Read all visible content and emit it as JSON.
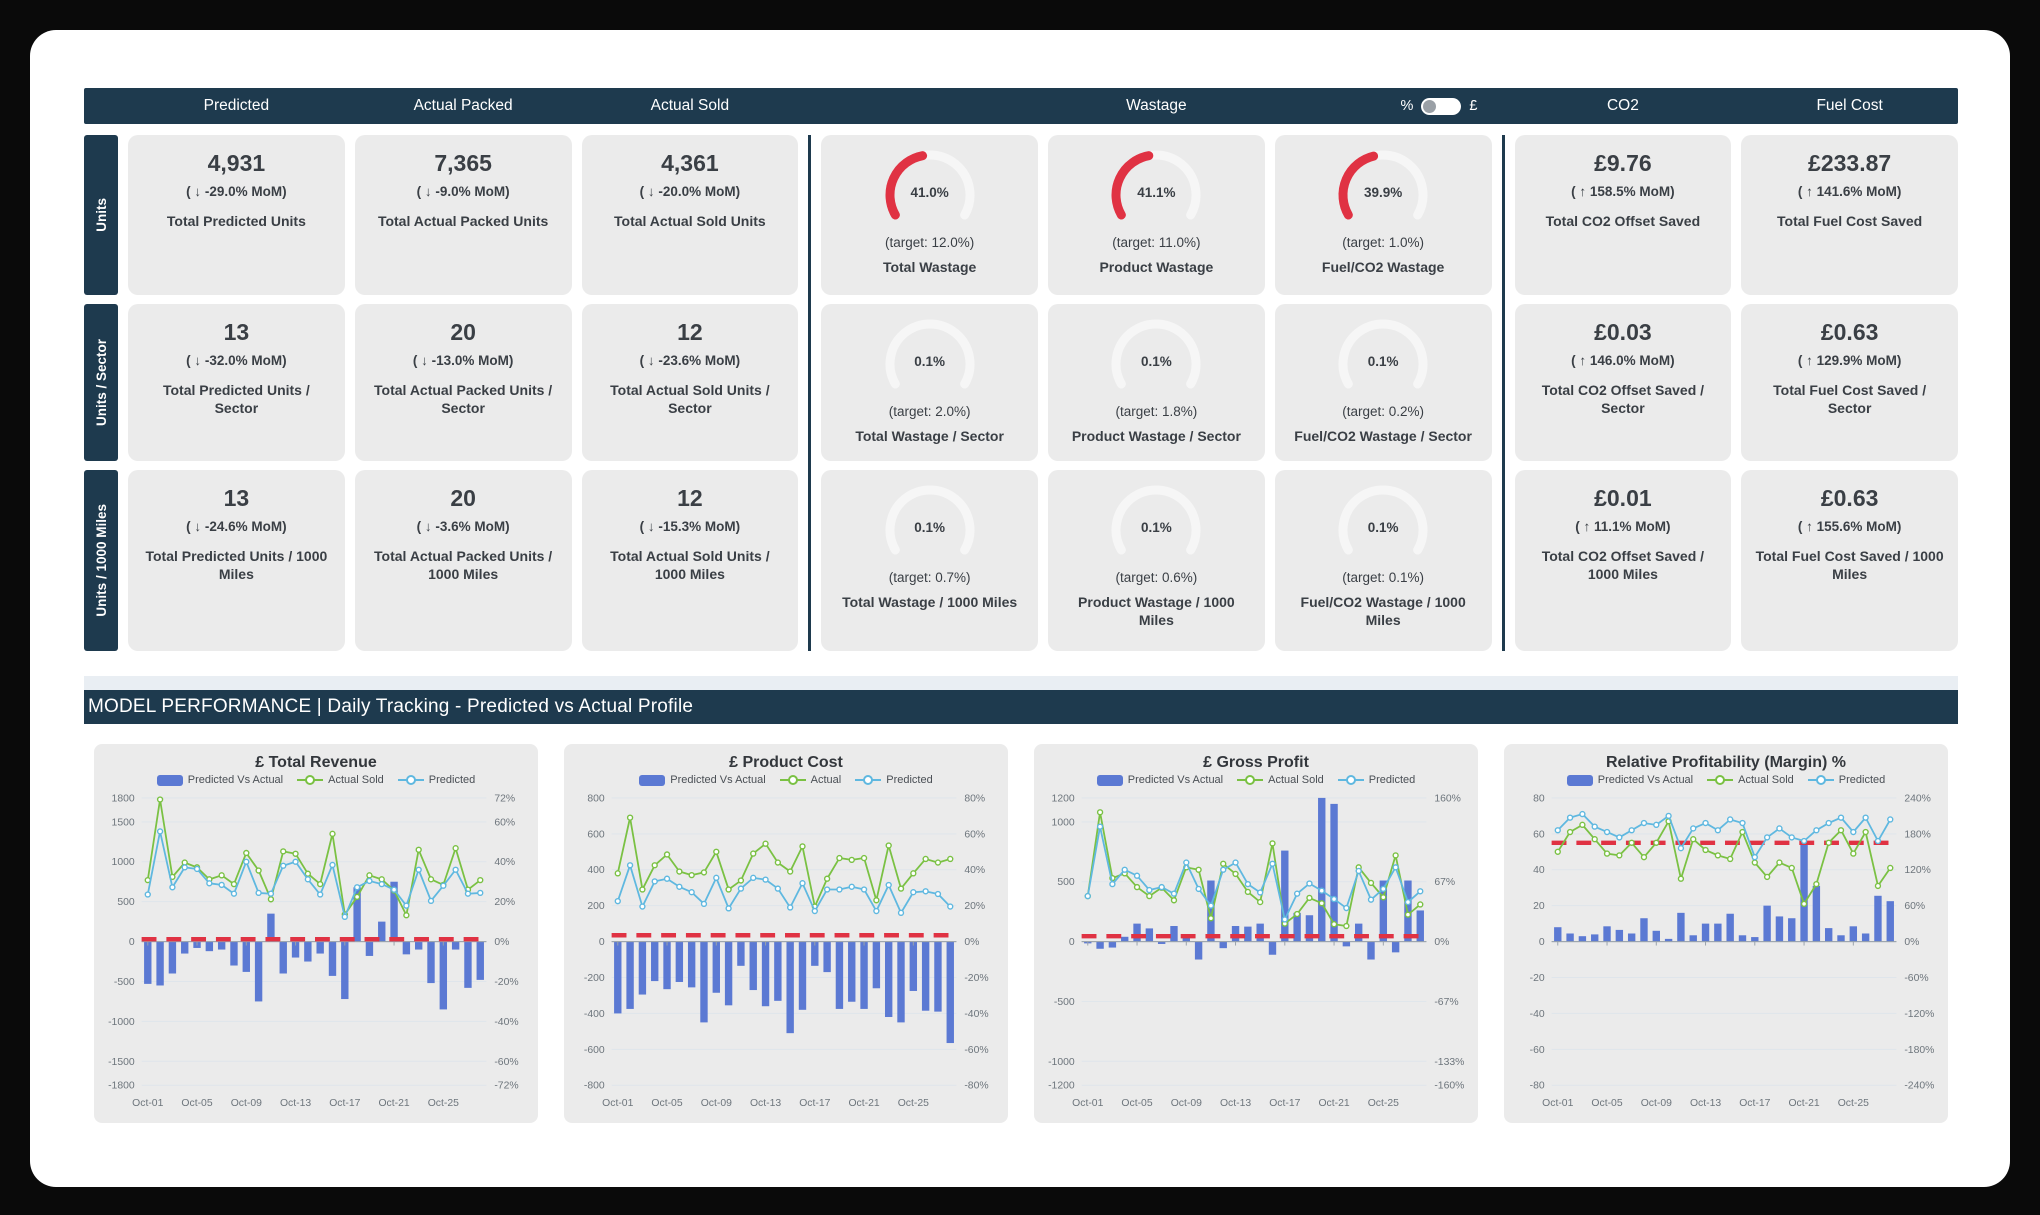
{
  "colors": {
    "navy": "#1e3a4e",
    "card_gray": "#ebebeb",
    "gauge_red": "#e03243",
    "gauge_track": "#f6f6f6",
    "bar_blue": "#5b79d3",
    "line_green": "#7ac143",
    "line_sky": "#5fb8e0",
    "dash_red": "#e03243"
  },
  "top": {
    "header": {
      "predicted": "Predicted",
      "actual_packed": "Actual Packed",
      "actual_sold": "Actual Sold",
      "wastage": "Wastage",
      "co2": "CO2",
      "fuel_cost": "Fuel Cost",
      "toggle": {
        "left_label": "%",
        "right_label": "£",
        "state": "percent"
      }
    },
    "rows": [
      {
        "rail": "Units",
        "predicted": {
          "value": "4,931",
          "change": "( ↓  -29.0% MoM)",
          "label": "Total Predicted Units"
        },
        "packed": {
          "value": "7,365",
          "change": "( ↓  -9.0% MoM)",
          "label": "Total Actual Packed Units"
        },
        "sold": {
          "value": "4,361",
          "change": "( ↓  -20.0% MoM)",
          "label": "Total Actual Sold Units"
        },
        "gauges": [
          {
            "value": "41.0%",
            "pct": 41.0,
            "target": "(target: 12.0%)",
            "label": "Total Wastage"
          },
          {
            "value": "41.1%",
            "pct": 41.1,
            "target": "(target: 11.0%)",
            "label": "Product Wastage"
          },
          {
            "value": "39.9%",
            "pct": 39.9,
            "target": "(target: 1.0%)",
            "label": "Fuel/CO2 Wastage"
          }
        ],
        "co2": {
          "value": "£9.76",
          "change": "( ↑  158.5% MoM)",
          "label": "Total CO2 Offset Saved"
        },
        "fuel": {
          "value": "£233.87",
          "change": "( ↑  141.6% MoM)",
          "label": "Total Fuel Cost Saved"
        }
      },
      {
        "rail": "Units / Sector",
        "predicted": {
          "value": "13",
          "change": "( ↓  -32.0% MoM)",
          "label": "Total Predicted Units / Sector"
        },
        "packed": {
          "value": "20",
          "change": "( ↓  -13.0% MoM)",
          "label": "Total Actual Packed Units / Sector"
        },
        "sold": {
          "value": "12",
          "change": "( ↓  -23.6% MoM)",
          "label": "Total Actual Sold Units / Sector"
        },
        "gauges": [
          {
            "value": "0.1%",
            "pct": 0.1,
            "target": "(target: 2.0%)",
            "label": "Total Wastage / Sector"
          },
          {
            "value": "0.1%",
            "pct": 0.1,
            "target": "(target: 1.8%)",
            "label": "Product Wastage / Sector"
          },
          {
            "value": "0.1%",
            "pct": 0.1,
            "target": "(target: 0.2%)",
            "label": "Fuel/CO2 Wastage / Sector"
          }
        ],
        "co2": {
          "value": "£0.03",
          "change": "( ↑  146.0% MoM)",
          "label": "Total CO2 Offset Saved / Sector"
        },
        "fuel": {
          "value": "£0.63",
          "change": "( ↑  129.9% MoM)",
          "label": "Total Fuel Cost Saved / Sector"
        }
      },
      {
        "rail": "Units / 1000 Miles",
        "predicted": {
          "value": "13",
          "change": "( ↓  -24.6% MoM)",
          "label": "Total Predicted Units / 1000 Miles"
        },
        "packed": {
          "value": "20",
          "change": "( ↓  -3.6% MoM)",
          "label": "Total Actual Packed Units / 1000 Miles"
        },
        "sold": {
          "value": "12",
          "change": "( ↓  -15.3% MoM)",
          "label": "Total Actual Sold Units / 1000 Miles"
        },
        "gauges": [
          {
            "value": "0.1%",
            "pct": 0.1,
            "target": "(target: 0.7%)",
            "label": "Total Wastage / 1000 Miles"
          },
          {
            "value": "0.1%",
            "pct": 0.1,
            "target": "(target: 0.6%)",
            "label": "Product Wastage / 1000 Miles"
          },
          {
            "value": "0.1%",
            "pct": 0.1,
            "target": "(target: 0.1%)",
            "label": "Fuel/CO2 Wastage / 1000 Miles"
          }
        ],
        "co2": {
          "value": "£0.01",
          "change": "( ↑  11.1% MoM)",
          "label": "Total CO2 Offset Saved / 1000 Miles"
        },
        "fuel": {
          "value": "£0.63",
          "change": "( ↑  155.6% MoM)",
          "label": "Total Fuel Cost Saved / 1000 Miles"
        }
      }
    ]
  },
  "section_title": "MODEL PERFORMANCE | Daily Tracking - Predicted vs Actual Profile",
  "chart_data": [
    {
      "type": "bar",
      "title": "£ Total Revenue",
      "legend": [
        "Predicted Vs Actual",
        "Actual Sold",
        "Predicted"
      ],
      "x": [
        "Oct-01",
        "Oct-02",
        "Oct-03",
        "Oct-04",
        "Oct-05",
        "Oct-06",
        "Oct-07",
        "Oct-08",
        "Oct-09",
        "Oct-10",
        "Oct-11",
        "Oct-12",
        "Oct-13",
        "Oct-14",
        "Oct-15",
        "Oct-16",
        "Oct-17",
        "Oct-18",
        "Oct-19",
        "Oct-20",
        "Oct-21",
        "Oct-22",
        "Oct-23",
        "Oct-24",
        "Oct-25",
        "Oct-26",
        "Oct-27",
        "Oct-28"
      ],
      "x_ticks": [
        "Oct-01",
        "Oct-05",
        "Oct-09",
        "Oct-13",
        "Oct-17",
        "Oct-21",
        "Oct-25"
      ],
      "ylim": [
        -1800,
        1800
      ],
      "target_line": 30,
      "y_ticks": [
        {
          "v": 1800,
          "l": "1800",
          "r": "72%"
        },
        {
          "v": 1500,
          "l": "1500",
          "r": "60%"
        },
        {
          "v": 1000,
          "l": "1000",
          "r": "40%"
        },
        {
          "v": 500,
          "l": "500",
          "r": "20%"
        },
        {
          "v": 0,
          "l": "0",
          "r": "0%"
        },
        {
          "v": -500,
          "l": "-500",
          "r": "-20%"
        },
        {
          "v": -1000,
          "l": "-1000",
          "r": "-40%"
        },
        {
          "v": -1500,
          "l": "-1500",
          "r": "-60%"
        },
        {
          "v": -1800,
          "l": "-1800",
          "r": "-72%"
        }
      ],
      "series": [
        {
          "name": "Predicted Vs Actual",
          "type": "bar",
          "color": "#5b79d3",
          "values": [
            -530,
            -550,
            -400,
            -150,
            -80,
            -120,
            -100,
            -300,
            -380,
            -750,
            350,
            -400,
            -200,
            -250,
            -150,
            -430,
            -720,
            680,
            -180,
            250,
            750,
            -160,
            -100,
            -520,
            -850,
            -100,
            -580,
            -480
          ]
        },
        {
          "name": "Actual Sold",
          "type": "line",
          "color": "#7ac143",
          "values": [
            770,
            1780,
            810,
            990,
            930,
            780,
            830,
            720,
            1110,
            890,
            530,
            1130,
            1100,
            850,
            720,
            1350,
            340,
            560,
            830,
            780,
            640,
            330,
            1150,
            780,
            710,
            1170,
            650,
            770
          ]
        },
        {
          "name": "Predicted",
          "type": "line",
          "color": "#5fb8e0",
          "values": [
            590,
            1380,
            680,
            930,
            910,
            730,
            710,
            600,
            1000,
            610,
            600,
            950,
            1000,
            780,
            590,
            960,
            310,
            680,
            760,
            720,
            650,
            450,
            900,
            510,
            700,
            900,
            600,
            610
          ]
        }
      ]
    },
    {
      "type": "bar",
      "title": "£ Product Cost",
      "legend": [
        "Predicted Vs Actual",
        "Actual",
        "Predicted"
      ],
      "x": [
        "Oct-01",
        "Oct-02",
        "Oct-03",
        "Oct-04",
        "Oct-05",
        "Oct-06",
        "Oct-07",
        "Oct-08",
        "Oct-09",
        "Oct-10",
        "Oct-11",
        "Oct-12",
        "Oct-13",
        "Oct-14",
        "Oct-15",
        "Oct-16",
        "Oct-17",
        "Oct-18",
        "Oct-19",
        "Oct-20",
        "Oct-21",
        "Oct-22",
        "Oct-23",
        "Oct-24",
        "Oct-25",
        "Oct-26",
        "Oct-27",
        "Oct-28"
      ],
      "x_ticks": [
        "Oct-01",
        "Oct-05",
        "Oct-09",
        "Oct-13",
        "Oct-17",
        "Oct-21",
        "Oct-25"
      ],
      "ylim": [
        -800,
        800
      ],
      "target_line": 35,
      "y_ticks": [
        {
          "v": 800,
          "l": "800",
          "r": "80%"
        },
        {
          "v": 600,
          "l": "600",
          "r": "60%"
        },
        {
          "v": 400,
          "l": "400",
          "r": "40%"
        },
        {
          "v": 200,
          "l": "200",
          "r": "20%"
        },
        {
          "v": 0,
          "l": "0",
          "r": "0%"
        },
        {
          "v": -200,
          "l": "-200",
          "r": "-20%"
        },
        {
          "v": -400,
          "l": "-400",
          "r": "-40%"
        },
        {
          "v": -600,
          "l": "-600",
          "r": "-60%"
        },
        {
          "v": -800,
          "l": "-800",
          "r": "-80%"
        }
      ],
      "series": [
        {
          "name": "Predicted Vs Actual",
          "type": "bar",
          "color": "#5b79d3",
          "values": [
            -400,
            -375,
            -295,
            -220,
            -265,
            -225,
            -255,
            -450,
            -285,
            -355,
            -135,
            -270,
            -360,
            -330,
            -510,
            -380,
            -135,
            -170,
            -375,
            -335,
            -375,
            -260,
            -420,
            -450,
            -275,
            -385,
            -390,
            -565
          ]
        },
        {
          "name": "Actual",
          "type": "line",
          "color": "#7ac143",
          "values": [
            380,
            690,
            290,
            425,
            485,
            390,
            370,
            385,
            500,
            290,
            340,
            490,
            545,
            440,
            390,
            530,
            195,
            350,
            465,
            455,
            465,
            230,
            535,
            295,
            380,
            460,
            440,
            460
          ]
        },
        {
          "name": "Predicted",
          "type": "line",
          "color": "#5fb8e0",
          "values": [
            225,
            425,
            195,
            335,
            350,
            305,
            275,
            210,
            355,
            185,
            295,
            355,
            345,
            295,
            190,
            325,
            170,
            290,
            290,
            305,
            290,
            170,
            315,
            160,
            275,
            280,
            265,
            195
          ]
        }
      ]
    },
    {
      "type": "bar",
      "title": "£ Gross Profit",
      "legend": [
        "Predicted Vs Actual",
        "Actual Sold",
        "Predicted"
      ],
      "x": [
        "Oct-01",
        "Oct-02",
        "Oct-03",
        "Oct-04",
        "Oct-05",
        "Oct-06",
        "Oct-07",
        "Oct-08",
        "Oct-09",
        "Oct-10",
        "Oct-11",
        "Oct-12",
        "Oct-13",
        "Oct-14",
        "Oct-15",
        "Oct-16",
        "Oct-17",
        "Oct-18",
        "Oct-19",
        "Oct-20",
        "Oct-21",
        "Oct-22",
        "Oct-23",
        "Oct-24",
        "Oct-25",
        "Oct-26",
        "Oct-27",
        "Oct-28"
      ],
      "x_ticks": [
        "Oct-01",
        "Oct-05",
        "Oct-09",
        "Oct-13",
        "Oct-17",
        "Oct-21",
        "Oct-25"
      ],
      "ylim": [
        -1200,
        1200
      ],
      "target_line": 45,
      "y_ticks": [
        {
          "v": 1200,
          "l": "1200",
          "r": "160%"
        },
        {
          "v": 1000,
          "l": "1000",
          "r": ""
        },
        {
          "v": 500,
          "l": "500",
          "r": "67%"
        },
        {
          "v": 0,
          "l": "0",
          "r": "0%"
        },
        {
          "v": -500,
          "l": "-500",
          "r": "-67%"
        },
        {
          "v": -1000,
          "l": "-1000",
          "r": "-133%"
        },
        {
          "v": -1200,
          "l": "-1200",
          "r": "-160%"
        }
      ],
      "series": [
        {
          "name": "Predicted Vs Actual",
          "type": "bar",
          "color": "#5b79d3",
          "values": [
            -15,
            -60,
            -50,
            40,
            150,
            110,
            -20,
            130,
            50,
            -150,
            510,
            -55,
            130,
            125,
            150,
            -110,
            760,
            240,
            220,
            1200,
            1150,
            -40,
            150,
            -150,
            510,
            -90,
            510,
            260
          ]
        },
        {
          "name": "Actual Sold",
          "type": "line",
          "color": "#7ac143",
          "values": [
            380,
            1080,
            530,
            570,
            455,
            380,
            450,
            345,
            620,
            600,
            195,
            650,
            565,
            415,
            330,
            820,
            150,
            230,
            365,
            320,
            145,
            130,
            620,
            490,
            370,
            720,
            225,
            310
          ]
        },
        {
          "name": "Predicted",
          "type": "line",
          "color": "#5fb8e0",
          "values": [
            380,
            960,
            480,
            600,
            550,
            430,
            455,
            400,
            660,
            440,
            300,
            600,
            660,
            480,
            410,
            650,
            185,
            400,
            485,
            425,
            355,
            280,
            590,
            350,
            440,
            620,
            330,
            420
          ]
        }
      ]
    },
    {
      "type": "bar",
      "title": "Relative Profitability (Margin) %",
      "legend": [
        "Predicted Vs Actual",
        "Actual Sold",
        "Predicted"
      ],
      "x": [
        "Oct-01",
        "Oct-02",
        "Oct-03",
        "Oct-04",
        "Oct-05",
        "Oct-06",
        "Oct-07",
        "Oct-08",
        "Oct-09",
        "Oct-10",
        "Oct-11",
        "Oct-12",
        "Oct-13",
        "Oct-14",
        "Oct-15",
        "Oct-16",
        "Oct-17",
        "Oct-18",
        "Oct-19",
        "Oct-20",
        "Oct-21",
        "Oct-22",
        "Oct-23",
        "Oct-24",
        "Oct-25",
        "Oct-26",
        "Oct-27",
        "Oct-28"
      ],
      "x_ticks": [
        "Oct-01",
        "Oct-05",
        "Oct-09",
        "Oct-13",
        "Oct-17",
        "Oct-21",
        "Oct-25"
      ],
      "ylim": [
        -80,
        80
      ],
      "target_line": 55,
      "y_ticks": [
        {
          "v": 80,
          "l": "80",
          "r": "240%"
        },
        {
          "v": 60,
          "l": "60",
          "r": "180%"
        },
        {
          "v": 40,
          "l": "40",
          "r": "120%"
        },
        {
          "v": 20,
          "l": "20",
          "r": "60%"
        },
        {
          "v": 0,
          "l": "0",
          "r": "0%"
        },
        {
          "v": -20,
          "l": "-20",
          "r": "-60%"
        },
        {
          "v": -40,
          "l": "-40",
          "r": "-120%"
        },
        {
          "v": -60,
          "l": "-60",
          "r": "-180%"
        },
        {
          "v": -80,
          "l": "-80",
          "r": "-240%"
        }
      ],
      "series": [
        {
          "name": "Predicted Vs Actual",
          "type": "bar",
          "color": "#5b79d3",
          "values": [
            8,
            4.5,
            3,
            4,
            8.5,
            6.5,
            4.5,
            13,
            6,
            1.5,
            16,
            3.5,
            10,
            10,
            15.5,
            3.5,
            2.5,
            20,
            14,
            13,
            54,
            31,
            7.5,
            3.5,
            8.5,
            4.5,
            25.5,
            22.5
          ]
        },
        {
          "name": "Actual Sold",
          "type": "line",
          "color": "#7ac143",
          "values": [
            50,
            61,
            65,
            57,
            49,
            48,
            55,
            47,
            55,
            67,
            35,
            57,
            51,
            48,
            46,
            61,
            44,
            36,
            44,
            41,
            21,
            32,
            55,
            62,
            49,
            61,
            31,
            41
          ]
        },
        {
          "name": "Predicted",
          "type": "line",
          "color": "#5fb8e0",
          "values": [
            62,
            69,
            71,
            64,
            61,
            58,
            62,
            66,
            65,
            70,
            52,
            63,
            66,
            62,
            68,
            66,
            47,
            58,
            63,
            58,
            56,
            62,
            66,
            69,
            61,
            69,
            56,
            68
          ]
        }
      ]
    }
  ]
}
